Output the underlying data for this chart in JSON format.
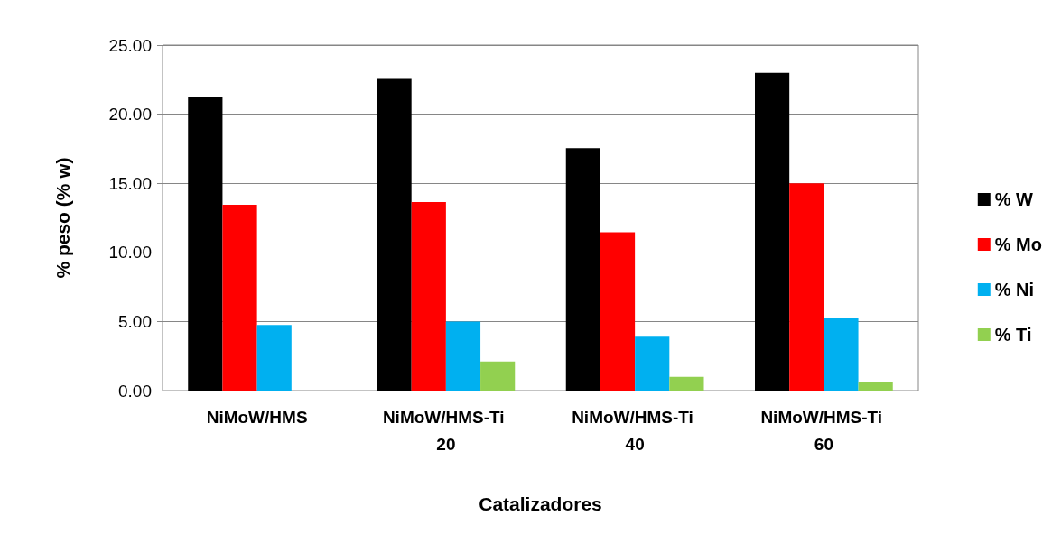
{
  "chart_data": {
    "type": "bar",
    "xlabel": "Catalizadores",
    "ylabel": "% peso (% w)",
    "categories": [
      "NiMoW/HMS",
      "NiMoW/HMS-Ti 20",
      "NiMoW/HMS-Ti 40",
      "NiMoW/HMS-Ti 60"
    ],
    "series": [
      {
        "name": "% W",
        "color": "#000000",
        "values": [
          21.25,
          22.55,
          17.55,
          23.0
        ]
      },
      {
        "name": "% Mo",
        "color": "#ff0000",
        "values": [
          13.45,
          13.65,
          11.45,
          15.0
        ]
      },
      {
        "name": "% Ni",
        "color": "#00b0f0",
        "values": [
          4.75,
          5.0,
          3.9,
          5.25
        ]
      },
      {
        "name": "% Ti",
        "color": "#92d050",
        "values": [
          null,
          2.1,
          1.0,
          0.6
        ]
      }
    ],
    "ylim": [
      0,
      25
    ],
    "yticks": [
      {
        "value": 0,
        "label": "0.00"
      },
      {
        "value": 5,
        "label": "5.00"
      },
      {
        "value": 10,
        "label": "10.00"
      },
      {
        "value": 15,
        "label": "15.00"
      },
      {
        "value": 20,
        "label": "20.00"
      },
      {
        "value": 25,
        "label": "25.00"
      }
    ],
    "grid": "y",
    "legend": "right"
  }
}
